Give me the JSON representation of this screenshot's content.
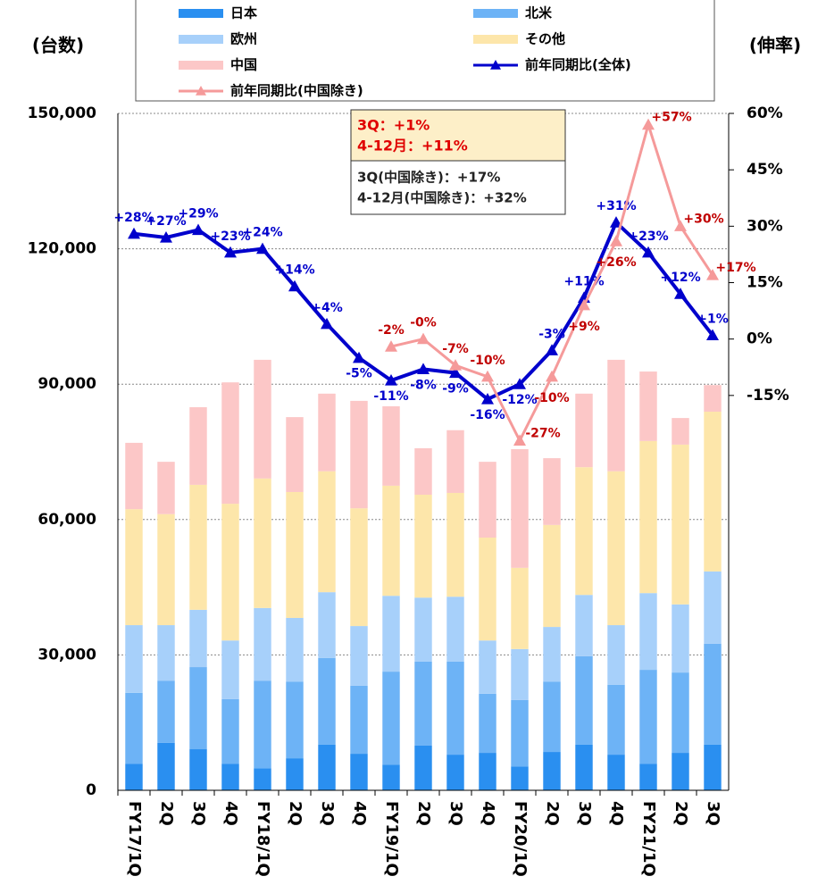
{
  "chart_data": {
    "type": "bar",
    "stacked": true,
    "y_axis_label": "(台数)",
    "y2_axis_label": "(伸率)",
    "categories": [
      "FY17/1Q",
      "2Q",
      "3Q",
      "4Q",
      "FY18/1Q",
      "2Q",
      "3Q",
      "4Q",
      "FY19/1Q",
      "2Q",
      "3Q",
      "4Q",
      "FY20/1Q",
      "2Q",
      "3Q",
      "4Q",
      "FY21/1Q",
      "2Q",
      "3Q"
    ],
    "ylim": [
      0,
      150000
    ],
    "yticks": [
      {
        "value": 0,
        "label": "0"
      },
      {
        "value": 30000,
        "label": "30,000"
      },
      {
        "value": 60000,
        "label": "60,000"
      },
      {
        "value": 90000,
        "label": "90,000"
      },
      {
        "value": 120000,
        "label": "120,000"
      },
      {
        "value": 150000,
        "label": "150,000"
      }
    ],
    "y2lim": [
      -120,
      60
    ],
    "y2ticks": [
      {
        "value": -15,
        "label": "-15%"
      },
      {
        "value": 0,
        "label": "0%"
      },
      {
        "value": 15,
        "label": "15%"
      },
      {
        "value": 30,
        "label": "30%"
      },
      {
        "value": 45,
        "label": "45%"
      },
      {
        "value": 60,
        "label": "60%"
      }
    ],
    "grid": true,
    "series": [
      {
        "name": "日本",
        "color": "#2a8ff0",
        "values": [
          5900,
          10500,
          9100,
          5900,
          4900,
          7100,
          10100,
          8100,
          5700,
          9900,
          7900,
          8300,
          5300,
          8500,
          10100,
          7900,
          5900,
          8300,
          10100
        ]
      },
      {
        "name": "北米",
        "color": "#6db3f6",
        "values": [
          15700,
          13800,
          18200,
          14300,
          19400,
          17000,
          19200,
          15100,
          20600,
          18600,
          20600,
          13100,
          14700,
          15600,
          19600,
          15500,
          20800,
          17800,
          22400
        ]
      },
      {
        "name": "欧州",
        "color": "#a7d0fa",
        "values": [
          15000,
          12300,
          12700,
          13000,
          16100,
          14100,
          14600,
          13200,
          16800,
          14200,
          14400,
          11800,
          11300,
          12100,
          13600,
          13200,
          17000,
          15100,
          16000
        ]
      },
      {
        "name": "その他",
        "color": "#fde6aa",
        "values": [
          25700,
          24600,
          27700,
          30300,
          28700,
          27900,
          26800,
          26100,
          24400,
          22800,
          23000,
          22800,
          18000,
          22600,
          28300,
          34100,
          33700,
          35400,
          35400
        ]
      },
      {
        "name": "中国",
        "color": "#fcc7c7",
        "values": [
          14700,
          11600,
          17200,
          26900,
          26300,
          16600,
          17200,
          23800,
          17600,
          10300,
          13900,
          16800,
          26300,
          14800,
          16300,
          24700,
          15400,
          5900,
          5900
        ]
      },
      {
        "name": "前年同期比(全体)",
        "color": "#0000cc",
        "label_color": "#0000cc",
        "axis": "y2",
        "values": [
          28,
          27,
          29,
          23,
          24,
          14,
          4,
          -5,
          -11,
          -8,
          -9,
          -16,
          -12,
          -3,
          11,
          31,
          23,
          12,
          1
        ],
        "value_labels": [
          "+28%",
          "+27%",
          "+29%",
          "+23%",
          "+24%",
          "+14%",
          "+4%",
          "-5%",
          "-11%",
          "-8%",
          "-9%",
          "-16%",
          "-12%",
          "-3%",
          "+11%",
          "+31%",
          "+23%",
          "+12%",
          "+1%"
        ]
      },
      {
        "name": "前年同期比(中国除き)",
        "color": "#f59a9a",
        "label_color": "#c00000",
        "axis": "y2",
        "values": [
          null,
          null,
          null,
          null,
          null,
          null,
          null,
          null,
          -2,
          0,
          -7,
          -10,
          -27,
          -10,
          9,
          26,
          57,
          30,
          17
        ],
        "value_labels": [
          null,
          null,
          null,
          null,
          null,
          null,
          null,
          null,
          "-2%",
          "-0%",
          "-7%",
          "-10%",
          "-27%",
          "-10%",
          "+9%",
          "+26%",
          "+57%",
          "+30%",
          "+17%"
        ]
      }
    ],
    "annotation": {
      "highlight": [
        "3Q：+1%",
        "4-12月：+11%"
      ],
      "note": [
        "3Q(中国除き)：+17%",
        "4-12月(中国除き)：+32%"
      ]
    }
  }
}
